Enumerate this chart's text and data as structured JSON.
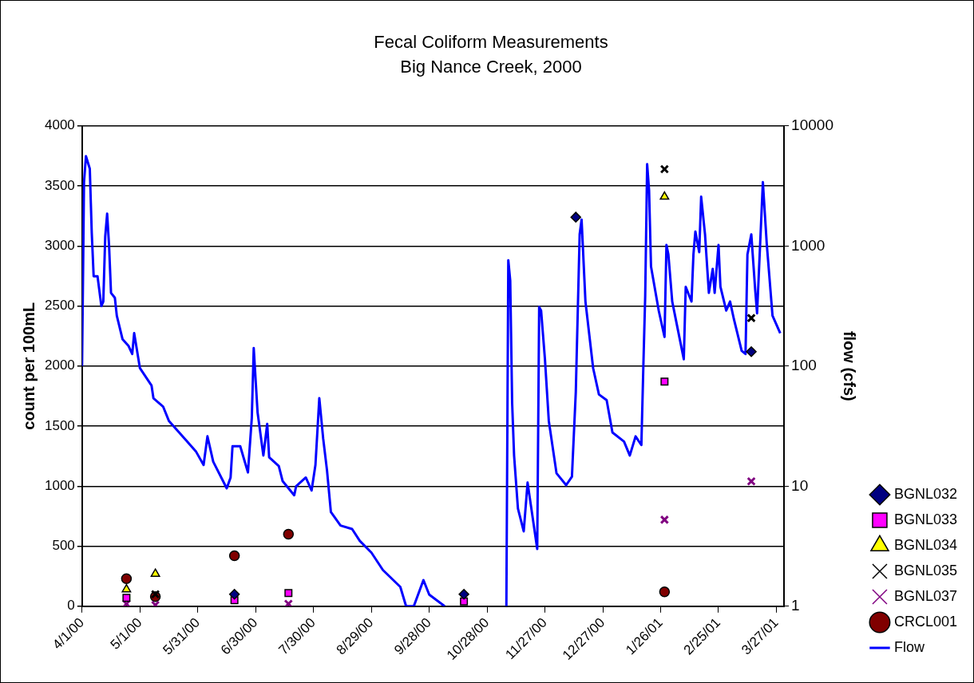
{
  "chart_data": {
    "type": "scatter",
    "title": "Fecal Coliform Measurements",
    "subtitle": "Big Nance Creek, 2000",
    "ylabel": "count per 100mL",
    "y2label": "flow (cfs)",
    "xlim": [
      "2000-04-01",
      "2001-03-31"
    ],
    "xticks": [
      {
        "value": "2000-04-01",
        "label": "4/1/00"
      },
      {
        "value": "2000-05-01",
        "label": "5/1/00"
      },
      {
        "value": "2000-05-31",
        "label": "5/31/00"
      },
      {
        "value": "2000-06-30",
        "label": "6/30/00"
      },
      {
        "value": "2000-07-30",
        "label": "7/30/00"
      },
      {
        "value": "2000-08-29",
        "label": "8/29/00"
      },
      {
        "value": "2000-09-28",
        "label": "9/28/00"
      },
      {
        "value": "2000-10-28",
        "label": "10/28/00"
      },
      {
        "value": "2000-11-27",
        "label": "11/27/00"
      },
      {
        "value": "2000-12-27",
        "label": "12/27/00"
      },
      {
        "value": "2001-01-26",
        "label": "1/26/01"
      },
      {
        "value": "2001-02-25",
        "label": "2/25/01"
      },
      {
        "value": "2001-03-27",
        "label": "3/27/01"
      }
    ],
    "ylim": [
      0,
      4000
    ],
    "yticks": [
      0,
      500,
      1000,
      1500,
      2000,
      2500,
      3000,
      3500,
      4000
    ],
    "y2lim": [
      1,
      10000
    ],
    "y2ticks": [
      1,
      10,
      100,
      1000,
      10000
    ],
    "log": "y2",
    "grid": "y",
    "legend": "bottom right",
    "series": [
      {
        "name": "BGNL032",
        "color": "#000080",
        "marker": "diamond",
        "x": [
          "2000-06-19",
          "2000-10-16",
          "2000-12-13",
          "2001-03-14"
        ],
        "values": [
          100,
          100,
          3240,
          2120
        ]
      },
      {
        "name": "BGNL033",
        "color": "#ff00ff",
        "marker": "square",
        "x": [
          "2000-04-24",
          "2000-06-19",
          "2000-07-17",
          "2000-10-16",
          "2001-01-28"
        ],
        "values": [
          70,
          50,
          110,
          40,
          1870
        ]
      },
      {
        "name": "BGNL034",
        "color": "#ffff00",
        "marker": "triangle",
        "x": [
          "2000-04-24",
          "2000-05-09",
          "2001-01-28"
        ],
        "values": [
          140,
          270,
          3410
        ]
      },
      {
        "name": "BGNL035",
        "color": "#000000",
        "marker": "cross",
        "x": [
          "2000-05-09",
          "2001-01-28",
          "2001-03-14"
        ],
        "values": [
          100,
          3640,
          2400
        ]
      },
      {
        "name": "BGNL037",
        "color": "#800080",
        "marker": "cross",
        "x": [
          "2000-04-24",
          "2000-05-09",
          "2000-07-17",
          "2001-01-28",
          "2001-03-14"
        ],
        "values": [
          20,
          10,
          20,
          720,
          1040
        ]
      },
      {
        "name": "CRCL001",
        "color": "#800000",
        "marker": "circle",
        "x": [
          "2000-04-24",
          "2000-05-09",
          "2000-06-19",
          "2000-07-17",
          "2001-01-28"
        ],
        "values": [
          230,
          80,
          420,
          600,
          120
        ]
      },
      {
        "name": "Flow",
        "type": "line",
        "axis": "y2",
        "color": "#0000ff",
        "marker": "none",
        "line_style": "solid",
        "x": [
          "2000-04-01",
          "2000-04-02",
          "2000-04-03",
          "2000-04-05",
          "2000-04-06",
          "2000-04-07",
          "2000-04-09",
          "2000-04-11",
          "2000-04-12",
          "2000-04-13",
          "2000-04-14",
          "2000-04-15",
          "2000-04-16",
          "2000-04-18",
          "2000-04-19",
          "2000-04-22",
          "2000-04-25",
          "2000-04-27",
          "2000-04-28",
          "2000-05-01",
          "2000-05-07",
          "2000-05-08",
          "2000-05-13",
          "2000-05-16",
          "2000-05-25",
          "2000-05-30",
          "2000-06-03",
          "2000-06-05",
          "2000-06-08",
          "2000-06-15",
          "2000-06-17",
          "2000-06-18",
          "2000-06-22",
          "2000-06-26",
          "2000-06-28",
          "2000-06-29",
          "2000-06-30",
          "2000-07-01",
          "2000-07-04",
          "2000-07-06",
          "2000-07-07",
          "2000-07-12",
          "2000-07-14",
          "2000-07-20",
          "2000-07-21",
          "2000-07-26",
          "2000-07-29",
          "2000-07-31",
          "2000-08-02",
          "2000-08-04",
          "2000-08-06",
          "2000-08-08",
          "2000-08-13",
          "2000-08-19",
          "2000-08-23",
          "2000-08-29",
          "2000-09-04",
          "2000-09-13",
          "2000-09-16",
          "2000-09-20",
          "2000-09-25",
          "2000-09-28",
          "2000-10-06",
          "2000-10-20",
          "2000-11-07",
          "2000-11-08",
          "2000-11-09",
          "2000-11-10",
          "2000-11-11",
          "2000-11-13",
          "2000-11-16",
          "2000-11-18",
          "2000-11-23",
          "2000-11-24",
          "2000-11-25",
          "2000-11-27",
          "2000-11-29",
          "2000-12-03",
          "2000-12-08",
          "2000-12-11",
          "2000-12-13",
          "2000-12-15",
          "2000-12-16",
          "2000-12-18",
          "2000-12-22",
          "2000-12-25",
          "2000-12-29",
          "2001-01-01",
          "2001-01-07",
          "2001-01-10",
          "2001-01-13",
          "2001-01-16",
          "2001-01-17",
          "2001-01-18",
          "2001-01-19",
          "2001-01-20",
          "2001-01-21",
          "2001-01-25",
          "2001-01-28",
          "2001-01-29",
          "2001-01-30",
          "2001-02-01",
          "2001-02-04",
          "2001-02-07",
          "2001-02-08",
          "2001-02-11",
          "2001-02-12",
          "2001-02-13",
          "2001-02-15",
          "2001-02-16",
          "2001-02-18",
          "2001-02-20",
          "2001-02-22",
          "2001-02-23",
          "2001-02-25",
          "2001-02-26",
          "2001-03-01",
          "2001-03-03",
          "2001-03-05",
          "2001-03-09",
          "2001-03-11",
          "2001-03-12",
          "2001-03-14",
          "2001-03-16",
          "2001-03-17",
          "2001-03-20",
          "2001-03-22",
          "2001-03-25",
          "2001-03-29"
        ],
        "values": [
          100,
          3400,
          5600,
          4400,
          1300,
          560,
          560,
          316,
          345,
          1200,
          1860,
          1000,
          407,
          370,
          263,
          167,
          148,
          126,
          188,
          96,
          69,
          54,
          46,
          35,
          24,
          19.5,
          15,
          26,
          16,
          9.6,
          11.8,
          21.5,
          21.5,
          13,
          37,
          141,
          76,
          41,
          18,
          33,
          17.4,
          14.7,
          11,
          8.4,
          10,
          11.8,
          9.2,
          15,
          54,
          25,
          13.5,
          6.1,
          4.7,
          4.4,
          3.5,
          2.8,
          2.0,
          1.45,
          1,
          1,
          1.65,
          1.25,
          1,
          null,
          1,
          760,
          515,
          49,
          18,
          6.5,
          4.2,
          10.7,
          3.0,
          310,
          290,
          114,
          35,
          12.8,
          10.2,
          12,
          61,
          1250,
          1660,
          345,
          96,
          58,
          52,
          28,
          23.5,
          18,
          26,
          22,
          96,
          390,
          4800,
          2900,
          675,
          290,
          175,
          1020,
          850,
          345,
          198,
          114,
          457,
          345,
          850,
          1320,
          890,
          2570,
          1250,
          407,
          645,
          407,
          1020,
          457,
          290,
          345,
          245,
          134,
          126,
          850,
          1250,
          435,
          275,
          3400,
          1050,
          263,
          188
        ]
      }
    ]
  }
}
